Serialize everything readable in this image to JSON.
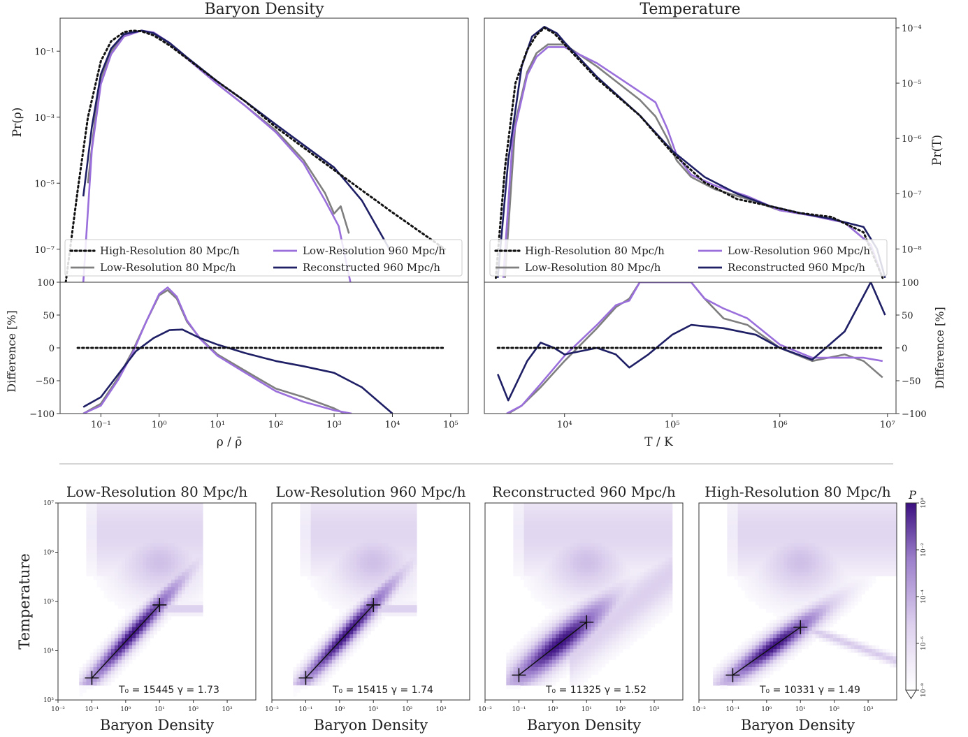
{
  "figure": {
    "colors": {
      "high_res": "#111111",
      "low_res_80": "#7f7f7f",
      "low_res_960": "#9a6fdc",
      "reconstructed": "#1f1f66",
      "heat_low": "#ffffff",
      "heat_high": "#3b0f80",
      "axes": "#333333"
    }
  },
  "chart_data": [
    {
      "type": "line",
      "title": "Baryon Density",
      "xlabel": "ρ / ρ̄",
      "ylabel": "Pr(ρ)",
      "xscale": "log",
      "yscale": "log",
      "xlim": [
        0.02,
        200000
      ],
      "ylim": [
        1e-08,
        1
      ],
      "x_ticks": [
        0.1,
        1,
        10,
        100,
        1000,
        10000,
        100000
      ],
      "x_tick_labels": [
        "10⁻¹",
        "10⁰",
        "10¹",
        "10²",
        "10³",
        "10⁴",
        "10⁵"
      ],
      "y_ticks": [
        1e-07,
        1e-05,
        0.001,
        0.1
      ],
      "y_tick_labels": [
        "10⁻⁷",
        "10⁻⁵",
        "10⁻³",
        "10⁻¹"
      ],
      "legend": {
        "placement": "lower",
        "entries": [
          {
            "label": "High-Resolution 80 Mpc/h",
            "series": "high_res"
          },
          {
            "label": "Low-Resolution 960 Mpc/h",
            "series": "low_res_960"
          },
          {
            "label": "Low-Resolution  80 Mpc/h",
            "series": "low_res_80"
          },
          {
            "label": "Reconstructed   960 Mpc/h",
            "series": "reconstructed"
          }
        ]
      },
      "series": [
        {
          "key": "high_res",
          "style": "dotted",
          "x": [
            0.025,
            0.04,
            0.06,
            0.1,
            0.15,
            0.25,
            0.35,
            0.5,
            0.8,
            1.5,
            3,
            10,
            30,
            100,
            1000,
            10000,
            80000
          ],
          "y": [
            1e-08,
            6e-06,
            0.001,
            0.05,
            0.2,
            0.38,
            0.42,
            0.4,
            0.3,
            0.15,
            0.06,
            0.012,
            0.003,
            0.0005,
            2.5e-05,
            1.3e-06,
            1e-07
          ]
        },
        {
          "key": "low_res_80",
          "style": "solid",
          "x": [
            0.06,
            0.08,
            0.1,
            0.15,
            0.25,
            0.5,
            0.8,
            1.5,
            3,
            10,
            30,
            100,
            300,
            700,
            1000,
            1300,
            1800
          ],
          "y": [
            1e-05,
            0.001,
            0.015,
            0.1,
            0.3,
            0.42,
            0.35,
            0.17,
            0.06,
            0.01,
            0.0022,
            0.0004,
            5e-05,
            5e-06,
            1.2e-06,
            2e-06,
            3e-07
          ]
        },
        {
          "key": "low_res_960",
          "style": "solid",
          "x": [
            0.05,
            0.07,
            0.1,
            0.15,
            0.25,
            0.5,
            0.8,
            1.5,
            3,
            10,
            30,
            100,
            300,
            700,
            1200,
            2500
          ],
          "y": [
            1e-08,
            0.0001,
            0.01,
            0.08,
            0.28,
            0.42,
            0.37,
            0.18,
            0.06,
            0.01,
            0.0022,
            0.00035,
            4e-05,
            3e-06,
            5e-07,
            1e-09
          ]
        },
        {
          "key": "reconstructed",
          "style": "solid",
          "x": [
            0.05,
            0.07,
            0.1,
            0.15,
            0.25,
            0.5,
            0.8,
            1.5,
            3,
            10,
            30,
            100,
            1000,
            3000,
            10000
          ],
          "y": [
            4e-06,
            0.0005,
            0.02,
            0.12,
            0.33,
            0.42,
            0.35,
            0.18,
            0.065,
            0.012,
            0.003,
            0.0006,
            3e-05,
            3e-06,
            7e-08
          ]
        }
      ]
    },
    {
      "type": "line",
      "title": "Temperature",
      "ylabel": "Pr(T)",
      "xscale": "log",
      "yscale": "log",
      "xlim": [
        1800,
        12000000
      ],
      "ylim": [
        2.5e-09,
        0.00015
      ],
      "x_ticks": [
        10000,
        100000,
        1000000,
        10000000
      ],
      "x_tick_labels": [
        "10⁴",
        "10⁵",
        "10⁶",
        "10⁷"
      ],
      "y_ticks": [
        1e-08,
        1e-07,
        1e-06,
        1e-05,
        0.0001
      ],
      "y_tick_labels": [
        "10⁻⁸",
        "10⁻⁷",
        "10⁻⁶",
        "10⁻⁵",
        "10⁻⁴"
      ],
      "legend": {
        "placement": "lower",
        "entries": [
          {
            "label": "High-Resolution 80 Mpc/h",
            "series": "high_res"
          },
          {
            "label": "Low-Resolution 960 Mpc/h",
            "series": "low_res_960"
          },
          {
            "label": "Low-Resolution  80 Mpc/h",
            "series": "low_res_80"
          },
          {
            "label": "Reconstructed   960 Mpc/h",
            "series": "reconstructed"
          }
        ]
      },
      "series": [
        {
          "key": "high_res",
          "style": "dotted",
          "x": [
            2300,
            2800,
            3500,
            4500,
            5500,
            6500,
            8000,
            10000,
            20000,
            50000,
            100000,
            200000,
            400000,
            800000,
            1500000,
            3000000,
            6000000,
            9000000
          ],
          "y": [
            3e-09,
            3e-07,
            1e-05,
            4e-05,
            7.5e-05,
            0.0001,
            8e-05,
            5e-05,
            1.2e-05,
            2.6e-06,
            5.5e-07,
            1.6e-07,
            8e-08,
            6e-08,
            4.5e-08,
            3.8e-08,
            2e-08,
            3e-09
          ]
        },
        {
          "key": "low_res_80",
          "style": "solid",
          "x": [
            2800,
            3500,
            4500,
            5500,
            7000,
            10000,
            20000,
            50000,
            70000,
            90000,
            110000,
            150000,
            250000,
            500000,
            1000000,
            2000000,
            4000000,
            7000000,
            9000000
          ],
          "y": [
            3e-09,
            2e-06,
            1.6e-05,
            3.5e-05,
            5e-05,
            5e-05,
            2e-05,
            5e-06,
            2.5e-06,
            1e-06,
            4e-07,
            2e-07,
            1.2e-07,
            8e-08,
            5e-08,
            4e-08,
            3e-08,
            1.2e-08,
            3e-09
          ]
        },
        {
          "key": "low_res_960",
          "style": "solid",
          "x": [
            2700,
            3300,
            4500,
            5500,
            7000,
            10000,
            20000,
            50000,
            70000,
            90000,
            110000,
            150000,
            250000,
            500000,
            1000000,
            2000000,
            4000000,
            7000000,
            9000000
          ],
          "y": [
            3e-09,
            1e-06,
            1.4e-05,
            3e-05,
            4.5e-05,
            4.5e-05,
            2.3e-05,
            7e-06,
            4.5e-06,
            1.5e-06,
            5e-07,
            2.2e-07,
            1.4e-07,
            9e-08,
            5e-08,
            4e-08,
            3e-08,
            1.2e-08,
            3e-09
          ]
        },
        {
          "key": "reconstructed",
          "style": "solid",
          "x": [
            2400,
            3000,
            4000,
            5000,
            6500,
            8500,
            10000,
            20000,
            50000,
            100000,
            200000,
            400000,
            800000,
            1500000,
            3000000,
            6000000,
            8000000,
            9500000
          ],
          "y": [
            3e-09,
            4e-07,
            2e-05,
            7e-05,
            0.000105,
            8e-05,
            5.5e-05,
            1.3e-05,
            2.6e-06,
            6e-07,
            2e-07,
            1e-07,
            6e-08,
            4.5e-08,
            3.5e-08,
            2.5e-08,
            1e-08,
            3e-09
          ]
        }
      ]
    },
    {
      "type": "line",
      "xlabel": "ρ / ρ̄",
      "ylabel": "Difference [%]",
      "xscale": "log",
      "xlim": [
        0.02,
        200000
      ],
      "ylim": [
        -100,
        100
      ],
      "x_ticks": [
        0.1,
        1,
        10,
        100,
        1000,
        10000,
        100000
      ],
      "x_tick_labels": [
        "10⁻¹",
        "10⁰",
        "10¹",
        "10²",
        "10³",
        "10⁴",
        "10⁵"
      ],
      "y_ticks": [
        -100,
        -50,
        0,
        50,
        100
      ],
      "y_tick_labels": [
        "−100",
        "−50",
        "0",
        "50",
        "100"
      ],
      "series": [
        {
          "key": "high_res",
          "style": "dotted",
          "x": [
            0.04,
            80000
          ],
          "y": [
            0,
            0
          ]
        },
        {
          "key": "low_res_80",
          "style": "solid",
          "x": [
            0.05,
            0.1,
            0.2,
            0.35,
            0.6,
            1,
            1.4,
            2,
            3,
            5,
            10,
            30,
            100,
            300,
            1000,
            1500
          ],
          "y": [
            -100,
            -85,
            -45,
            -5,
            40,
            80,
            88,
            75,
            40,
            15,
            -10,
            -35,
            -62,
            -75,
            -92,
            -100
          ]
        },
        {
          "key": "low_res_960",
          "style": "solid",
          "x": [
            0.05,
            0.1,
            0.2,
            0.35,
            0.6,
            1,
            1.4,
            2,
            3,
            5,
            10,
            30,
            100,
            300,
            1000,
            2000
          ],
          "y": [
            -100,
            -88,
            -48,
            -8,
            40,
            82,
            92,
            78,
            42,
            14,
            -12,
            -38,
            -66,
            -82,
            -95,
            -100
          ]
        },
        {
          "key": "reconstructed",
          "style": "solid",
          "x": [
            0.05,
            0.1,
            0.2,
            0.4,
            0.8,
            1.5,
            2.5,
            5,
            10,
            30,
            100,
            300,
            1000,
            3000,
            10000
          ],
          "y": [
            -90,
            -75,
            -40,
            -5,
            15,
            27,
            28,
            15,
            5,
            -8,
            -20,
            -28,
            -38,
            -60,
            -100
          ]
        }
      ]
    },
    {
      "type": "line",
      "xlabel": "T / K",
      "ylabel": "Difference [%]",
      "xscale": "log",
      "xlim": [
        1800,
        12000000
      ],
      "ylim": [
        -100,
        100
      ],
      "x_ticks": [
        10000,
        100000,
        1000000,
        10000000
      ],
      "x_tick_labels": [
        "10⁴",
        "10⁵",
        "10⁶",
        "10⁷"
      ],
      "y_ticks": [
        -100,
        -50,
        0,
        50,
        100
      ],
      "y_tick_labels": [
        "−100",
        "−50",
        "0",
        "50",
        "100"
      ],
      "series": [
        {
          "key": "high_res",
          "style": "dotted",
          "x": [
            2400,
            9000000
          ],
          "y": [
            0,
            0
          ]
        },
        {
          "key": "low_res_80",
          "style": "solid",
          "x": [
            3000,
            4000,
            6000,
            10000,
            20000,
            30000,
            40000,
            50000,
            60000,
            150000,
            200000,
            300000,
            500000,
            1000000,
            2000000,
            4000000,
            6000000,
            9000000
          ],
          "y": [
            -100,
            -88,
            -60,
            -20,
            30,
            62,
            75,
            100,
            100,
            100,
            75,
            45,
            35,
            0,
            -20,
            -10,
            -20,
            -45
          ]
        },
        {
          "key": "low_res_960",
          "style": "solid",
          "x": [
            2900,
            4000,
            6000,
            10000,
            20000,
            30000,
            40000,
            50000,
            60000,
            150000,
            200000,
            300000,
            500000,
            1000000,
            2000000,
            4000000,
            6000000,
            9000000
          ],
          "y": [
            -100,
            -88,
            -55,
            -12,
            35,
            65,
            72,
            100,
            100,
            100,
            75,
            60,
            45,
            5,
            -15,
            -15,
            -15,
            -20
          ]
        },
        {
          "key": "reconstructed",
          "style": "solid",
          "x": [
            2400,
            3000,
            4500,
            6000,
            8000,
            10000,
            20000,
            30000,
            40000,
            60000,
            100000,
            150000,
            300000,
            600000,
            1000000,
            2000000,
            4000000,
            7000000,
            9500000
          ],
          "y": [
            -40,
            -80,
            -20,
            8,
            0,
            -10,
            0,
            -10,
            -30,
            -10,
            20,
            35,
            30,
            20,
            0,
            -18,
            25,
            100,
            50
          ]
        }
      ]
    },
    {
      "type": "heatmap",
      "title": "Low-Resolution 80 Mpc/h",
      "xlabel": "Baryon Density",
      "ylabel": "Temperature",
      "xscale": "log",
      "yscale": "log",
      "xlim": [
        0.01,
        7000
      ],
      "ylim": [
        1000,
        10000000
      ],
      "x_tick_labels": [
        "10⁻²",
        "10⁻¹",
        "10⁰",
        "10¹",
        "10²",
        "10³"
      ],
      "y_tick_labels": [
        "10³",
        "10⁴",
        "10⁵",
        "10⁶",
        "10⁷"
      ],
      "fit": {
        "T0": 15445,
        "gamma": 1.73,
        "x": [
          0.1,
          10
        ],
        "y": [
          2800,
          85000
        ]
      },
      "annotation": "T₀ = 15445   γ = 1.73"
    },
    {
      "type": "heatmap",
      "title": "Low-Resolution 960 Mpc/h",
      "xlabel": "Baryon Density",
      "xscale": "log",
      "yscale": "log",
      "xlim": [
        0.01,
        7000
      ],
      "ylim": [
        1000,
        10000000
      ],
      "x_tick_labels": [
        "10⁻²",
        "10⁻¹",
        "10⁰",
        "10¹",
        "10²",
        "10³"
      ],
      "fit": {
        "T0": 15415,
        "gamma": 1.74,
        "x": [
          0.1,
          10
        ],
        "y": [
          2800,
          85000
        ]
      },
      "annotation": "T₀ = 15415   γ = 1.74"
    },
    {
      "type": "heatmap",
      "title": "Reconstructed 960 Mpc/h",
      "xlabel": "Baryon Density",
      "xscale": "log",
      "yscale": "log",
      "xlim": [
        0.01,
        7000
      ],
      "ylim": [
        1000,
        10000000
      ],
      "x_tick_labels": [
        "10⁻²",
        "10⁻¹",
        "10⁰",
        "10¹",
        "10²",
        "10³"
      ],
      "fit": {
        "T0": 11325,
        "gamma": 1.52,
        "x": [
          0.1,
          10
        ],
        "y": [
          3200,
          38000
        ]
      },
      "annotation": "T₀ = 11325   γ = 1.52"
    },
    {
      "type": "heatmap",
      "title": "High-Resolution 80 Mpc/h",
      "xlabel": "Baryon Density",
      "xscale": "log",
      "yscale": "log",
      "xlim": [
        0.01,
        7000
      ],
      "ylim": [
        1000,
        10000000
      ],
      "x_tick_labels": [
        "10⁻²",
        "10⁻¹",
        "10⁰",
        "10¹",
        "10²",
        "10³"
      ],
      "fit": {
        "T0": 10331,
        "gamma": 1.49,
        "x": [
          0.1,
          10
        ],
        "y": [
          3200,
          30000
        ]
      },
      "annotation": "T₀ = 10331   γ = 1.49"
    }
  ],
  "colorbar": {
    "label": "P",
    "tick_labels": [
      "10⁰",
      "10⁻²",
      "10⁻⁴",
      "10⁻⁶",
      "10⁻⁸"
    ]
  }
}
